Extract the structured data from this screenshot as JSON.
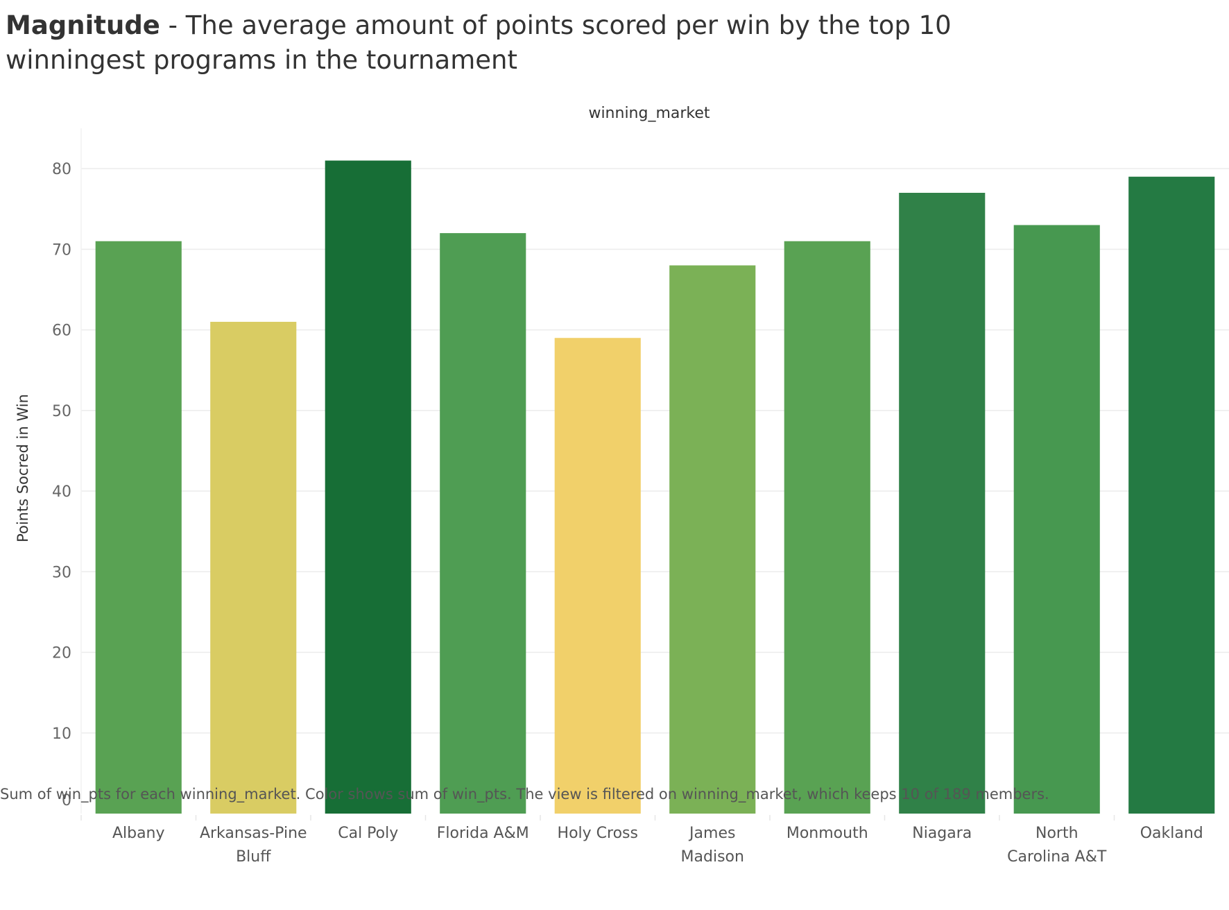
{
  "title": {
    "bold": "Magnitude",
    "rest": " - The average amount of points scored per win by the top 10 winningest programs in the tournament"
  },
  "chart_data": {
    "type": "bar",
    "header": "winning_market",
    "ylabel": "Points Socred in Win",
    "ylim": [
      0,
      85
    ],
    "yticks": [
      0,
      10,
      20,
      30,
      40,
      50,
      60,
      70,
      80
    ],
    "grid": true,
    "categories": [
      "Albany",
      "Arkansas-Pine Bluff",
      "Cal Poly",
      "Florida A&M",
      "Holy Cross",
      "James Madison",
      "Monmouth",
      "Niagara",
      "North Carolina A&T",
      "Oakland"
    ],
    "category_lines": [
      [
        "Albany"
      ],
      [
        "Arkansas-Pine",
        "Bluff"
      ],
      [
        "Cal Poly"
      ],
      [
        "Florida A&M"
      ],
      [
        "Holy Cross"
      ],
      [
        "James",
        "Madison"
      ],
      [
        "Monmouth"
      ],
      [
        "Niagara"
      ],
      [
        "North",
        "Carolina A&T"
      ],
      [
        "Oakland"
      ]
    ],
    "values": [
      71,
      61,
      81,
      72,
      59,
      68,
      71,
      77,
      73,
      79
    ],
    "colors": [
      "#59a253",
      "#d9cc63",
      "#176e36",
      "#4f9d53",
      "#f1d06a",
      "#7bb156",
      "#59a253",
      "#308148",
      "#479850",
      "#247a43"
    ]
  },
  "footnote": "Sum of win_pts for each winning_market.  Color shows sum of win_pts. The view is filtered on winning_market, which keeps 10 of 189 members."
}
